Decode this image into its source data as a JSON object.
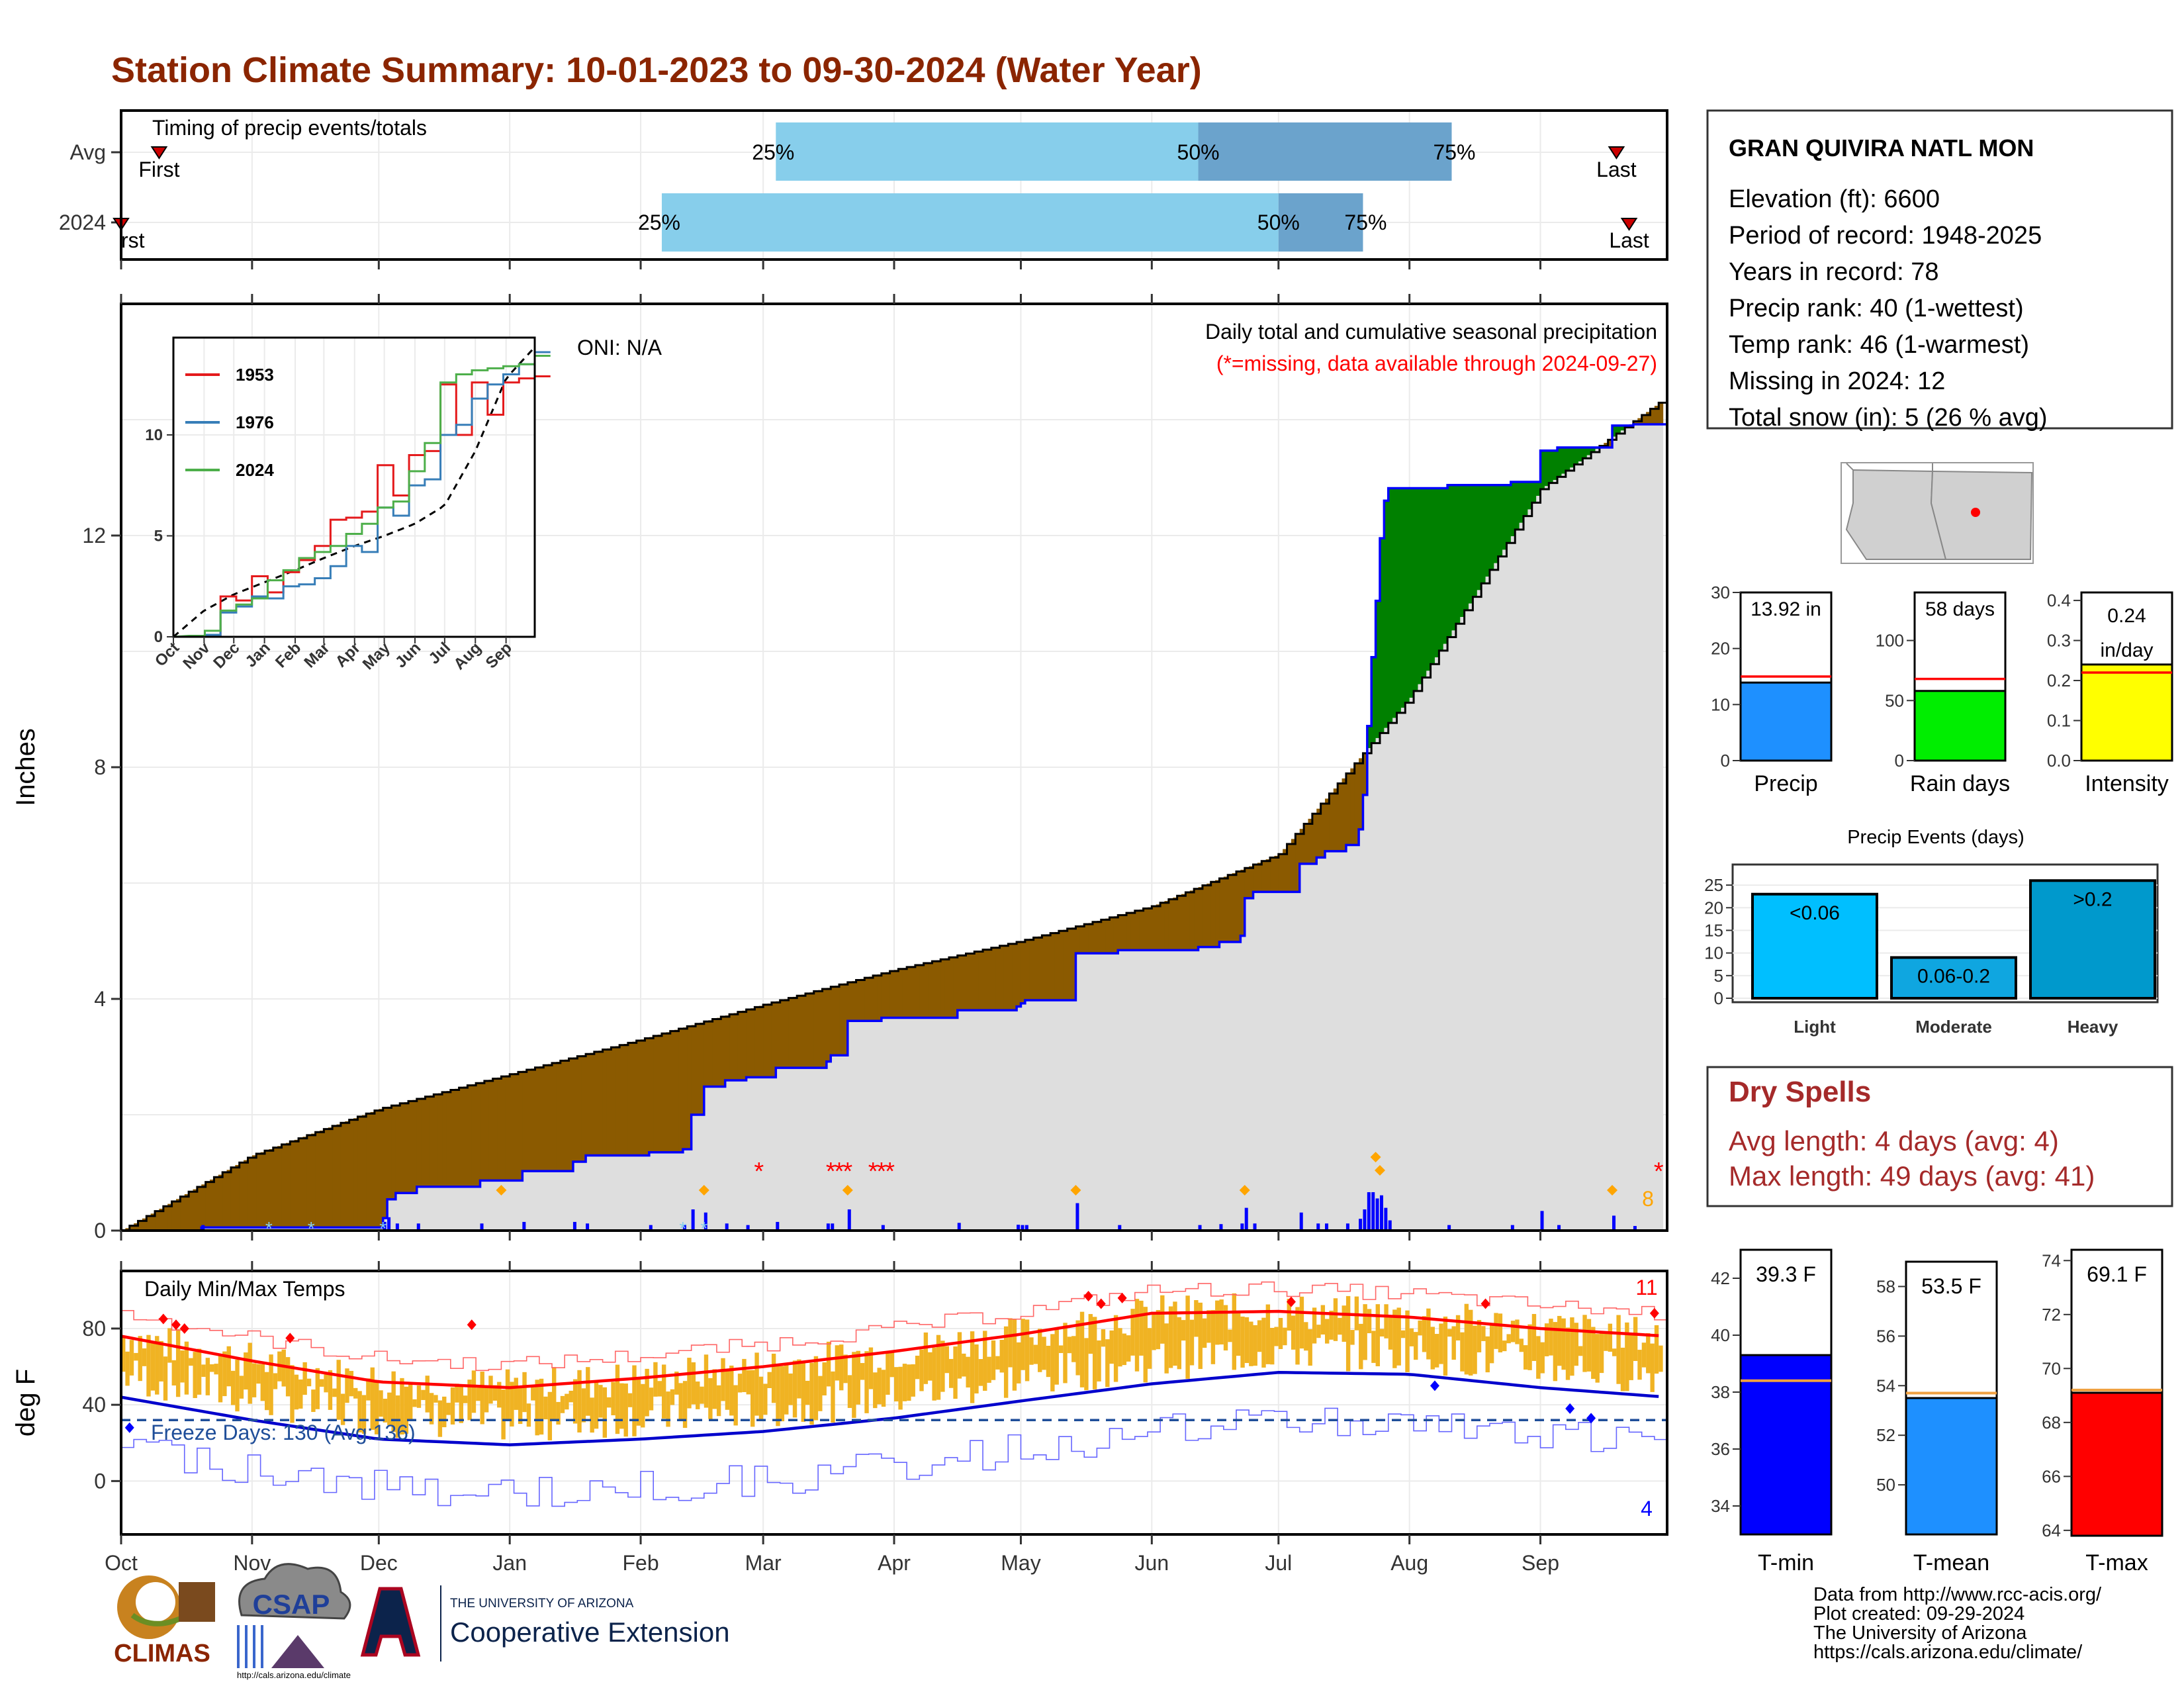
{
  "title": "Station Climate Summary: 10-01-2023 to 09-30-2024 (Water Year)",
  "colors": {
    "title": "#8b2500",
    "surplus": "#008000",
    "deficit": "#8b5a00",
    "normal_fill": "#dedede",
    "obs_line": "#0000ff",
    "temp_bar": "#f0b323",
    "tmax_line": "#ff0000",
    "tmin_line": "#0000cc",
    "light_blue": "#87ceeb",
    "steel_blue": "#6ba3cc",
    "dry_text": "#a52a2a"
  },
  "timing": {
    "label": "Timing of precip events/totals",
    "row_labels": [
      "Avg",
      "2024"
    ],
    "rows": [
      {
        "first_label": "First",
        "first_day": 9,
        "last_label": "Last",
        "last_day": 354,
        "p25": 155,
        "p50": 255,
        "p75": 315,
        "lbl25": "25%",
        "lbl50": "50%",
        "lbl75": "75%"
      },
      {
        "first_label": "First",
        "first_day": 0,
        "last_label": "Last",
        "last_day": 357,
        "p25": 128,
        "p50": 274,
        "p75": 294,
        "lbl25": "25%",
        "lbl50": "50%",
        "lbl75": "75%"
      }
    ]
  },
  "main": {
    "ylabel": "Inches",
    "y_ticks": [
      "0",
      "4",
      "8",
      "12"
    ],
    "oni": "ONI: N/A",
    "subtitle": "Daily total and cumulative seasonal precipitation",
    "missing_note": "(*=missing, data available through 2024-09-27)",
    "corner_count": "8"
  },
  "inset": {
    "x_ticks": [
      "Oct",
      "Nov",
      "Dec",
      "Jan",
      "Feb",
      "Mar",
      "Apr",
      "May",
      "Jun",
      "Jul",
      "Aug",
      "Sep"
    ],
    "y_ticks": [
      "0",
      "5",
      "10"
    ],
    "legend": [
      "1953",
      "1976",
      "2024"
    ],
    "legend_colors": [
      "#e41a1c",
      "#377eb8",
      "#4daf4a"
    ]
  },
  "temps": {
    "label": "Daily Min/Max Temps",
    "ylabel": "deg F",
    "y_ticks": [
      "0",
      "40",
      "80"
    ],
    "freeze": "Freeze Days: 130 (Avg:136)",
    "hi_count": "11",
    "lo_count": "4"
  },
  "months": [
    "Oct",
    "Nov",
    "Dec",
    "Jan",
    "Feb",
    "Mar",
    "Apr",
    "May",
    "Jun",
    "Jul",
    "Aug",
    "Sep"
  ],
  "station": {
    "name": "GRAN QUIVIRA NATL MON",
    "lines": [
      "Elevation (ft): 6600",
      "Period of record: 1948-2025",
      "Years in record: 78",
      "Precip rank: 40 (1-wettest)",
      "Temp rank: 46 (1-warmest)",
      "Missing in 2024: 12",
      "Total snow (in): 5 (26 % avg)"
    ]
  },
  "mini_bars": [
    {
      "label": "Precip",
      "value_text": "13.92 in",
      "value": 13.92,
      "avg": 15.0,
      "ymax": 30,
      "ticks": [
        "0",
        "10",
        "20",
        "30"
      ],
      "color": "#1e90ff"
    },
    {
      "label": "Rain days",
      "value_text": "58 days",
      "value": 58,
      "avg": 68,
      "ymax": 140,
      "ticks": [
        "0",
        "50",
        "100"
      ],
      "color": "#00ee00"
    },
    {
      "label": "Intensity",
      "value_text": "0.24 in/day",
      "value": 0.24,
      "avg": 0.22,
      "ymax": 0.42,
      "ticks": [
        "0.0",
        "0.1",
        "0.2",
        "0.3",
        "0.4"
      ],
      "color": "#ffff00"
    }
  ],
  "events": {
    "title": "Precip Events (days)",
    "categories": [
      "Light",
      "Moderate",
      "Heavy"
    ],
    "labels": [
      "<0.06",
      "0.06-0.2",
      ">0.2"
    ],
    "values": [
      23,
      9,
      26
    ],
    "colors": [
      "#00bfff",
      "#0fa6e0",
      "#0099cc"
    ],
    "y_ticks": [
      "0",
      "5",
      "10",
      "15",
      "20",
      "25"
    ]
  },
  "dry_spells": {
    "title": "Dry Spells",
    "avg": "Avg length: 4 days (avg: 4)",
    "max": "Max length: 49 days (avg: 41)"
  },
  "temp_bars": [
    {
      "label": "T-min",
      "value_text": "39.3 F",
      "value": 39.3,
      "avg": 38.4,
      "ymin": 33,
      "ymax": 43,
      "ticks": [
        "34",
        "36",
        "38",
        "40",
        "42"
      ],
      "color": "#0000ff"
    },
    {
      "label": "T-mean",
      "value_text": "53.5 F",
      "value": 53.5,
      "avg": 53.7,
      "ymin": 48,
      "ymax": 59,
      "ticks": [
        "50",
        "52",
        "54",
        "56",
        "58"
      ],
      "color": "#1e90ff"
    },
    {
      "label": "T-max",
      "value_text": "69.1 F",
      "value": 69.1,
      "avg": 69.2,
      "ymin": 63.8,
      "ymax": 74.4,
      "ticks": [
        "64",
        "66",
        "68",
        "70",
        "72",
        "74"
      ],
      "color": "#ff0000"
    }
  ],
  "footer": [
    "Data from http://www.rcc-acis.org/",
    "Plot created: 09-29-2024",
    "The University of Arizona",
    "https://cals.arizona.edu/climate/"
  ],
  "logos": {
    "climas": "CLIMAS",
    "csap": "CSAP",
    "csap_url": "http://cals.arizona.edu/climate",
    "ua_top": "THE UNIVERSITY OF ARIZONA",
    "ua_bottom": "Cooperative Extension"
  },
  "chart_data": [
    {
      "type": "bar",
      "title": "Timing of precip events/totals",
      "categories": [
        "Avg",
        "2024"
      ],
      "series": [
        {
          "name": "25%",
          "values": [
            "Mar 3",
            "Feb 5"
          ]
        },
        {
          "name": "50%",
          "values": [
            "Jun 12",
            "Jul 1"
          ]
        },
        {
          "name": "75%",
          "values": [
            "Aug 11",
            "Jul 21"
          ]
        }
      ]
    },
    {
      "type": "area",
      "title": "Daily total and cumulative seasonal precipitation",
      "ylabel": "Inches",
      "ylim": [
        0,
        15.6
      ],
      "x": [
        "Oct",
        "Nov",
        "Dec",
        "Jan",
        "Feb",
        "Mar",
        "Apr",
        "May",
        "Jun",
        "Jul",
        "Aug",
        "Sep",
        "Sep 30"
      ],
      "series": [
        {
          "name": "avg",
          "values": [
            0,
            1.3,
            2.1,
            2.7,
            3.3,
            3.9,
            4.5,
            5.0,
            5.6,
            6.5,
            9.2,
            12.8,
            14.4
          ]
        },
        {
          "name": "2024",
          "values": [
            0,
            0.1,
            0.7,
            2.3,
            2.3,
            3.8,
            4.2,
            4.9,
            5.6,
            6.7,
            12.9,
            13.5,
            13.92
          ]
        }
      ]
    },
    {
      "type": "line",
      "title": "Daily Min/Max Temps",
      "ylabel": "deg F",
      "ylim": [
        -28,
        110
      ],
      "x": [
        "Oct",
        "Nov",
        "Dec",
        "Jan",
        "Feb",
        "Mar",
        "Apr",
        "May",
        "Jun",
        "Jul",
        "Aug",
        "Sep",
        "Sep 30"
      ],
      "series": [
        {
          "name": "avg max",
          "values": [
            76,
            63,
            52,
            49,
            54,
            60,
            68,
            77,
            88,
            89,
            86,
            80,
            76
          ]
        },
        {
          "name": "avg min",
          "values": [
            44,
            32,
            22,
            19,
            22,
            26,
            33,
            42,
            51,
            57,
            56,
            49,
            44
          ]
        }
      ]
    }
  ]
}
